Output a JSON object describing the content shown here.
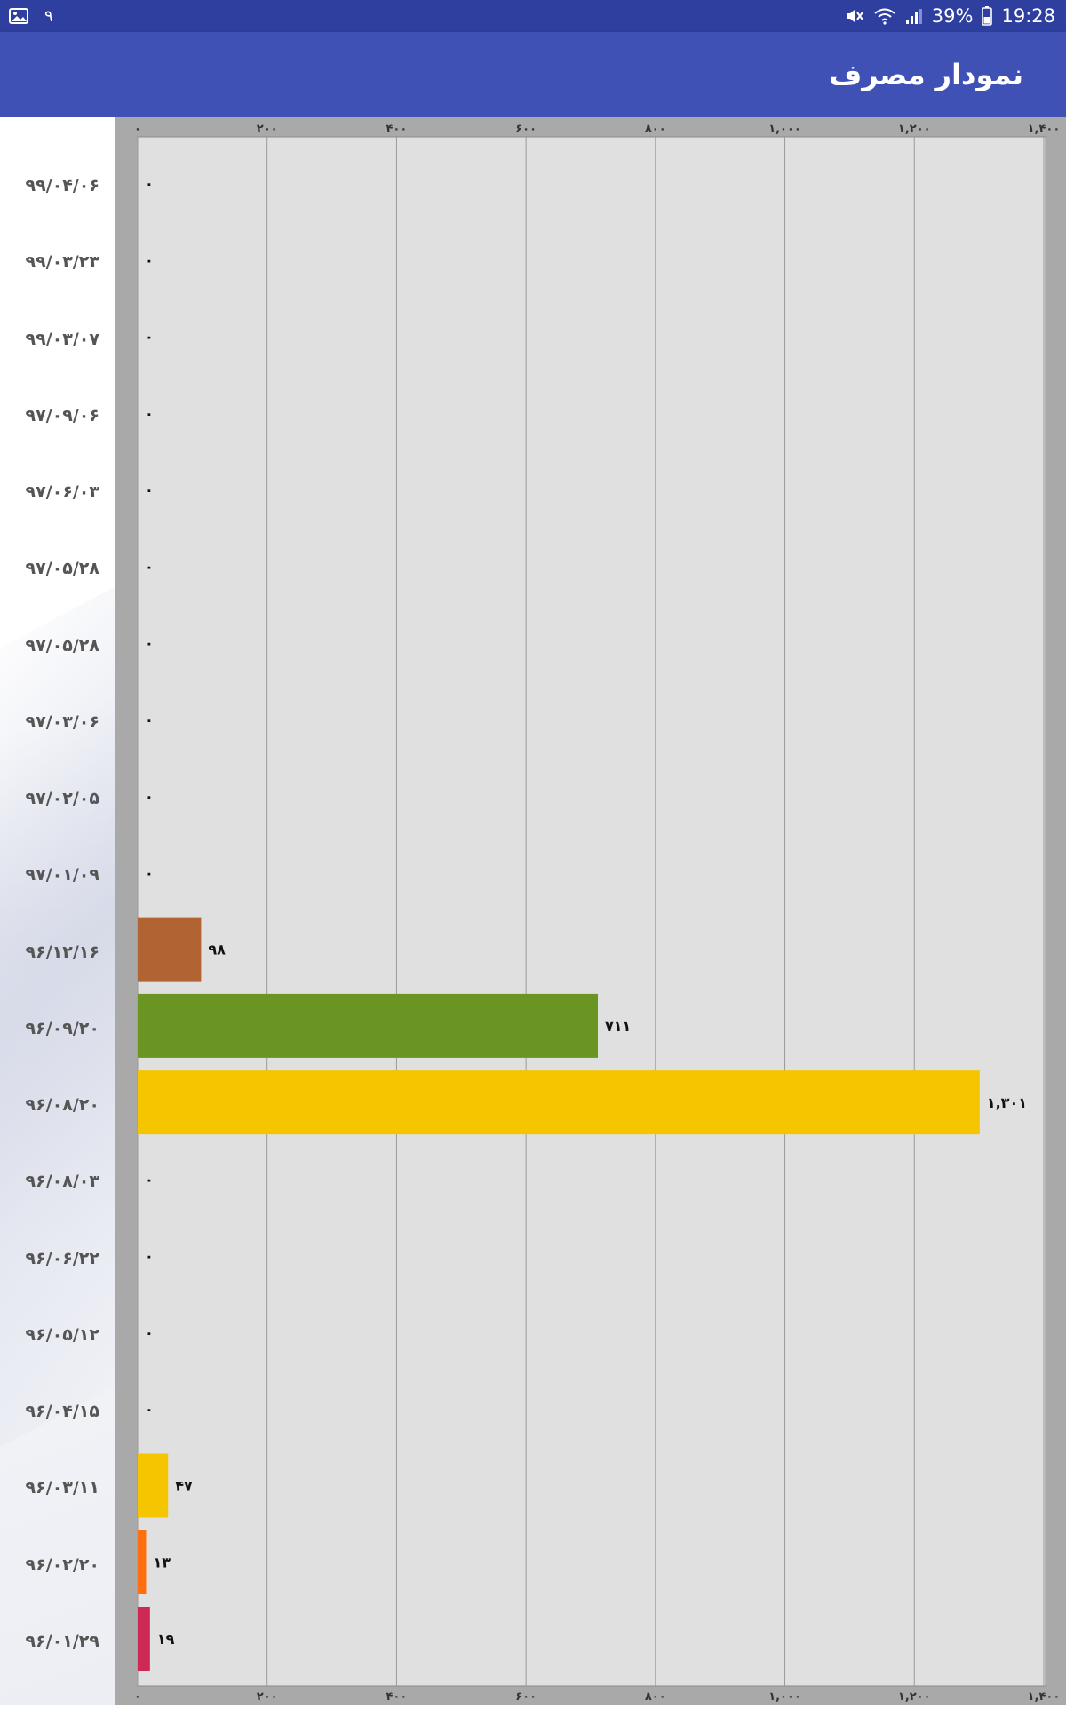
{
  "status_bar": {
    "left_notification": "۹",
    "battery": "39%",
    "time": "19:28",
    "icons": [
      "image-icon",
      "mute-icon",
      "wifi-icon",
      "signal-icon",
      "battery-icon"
    ]
  },
  "app_bar": {
    "title": "نمودار مصرف"
  },
  "colors": {
    "status_bar": "#2e3f9f",
    "app_bar": "#3f51b5",
    "plot_background": "#e0e0e0",
    "chart_frame": "#a9a9a9"
  },
  "chart_data": {
    "type": "bar",
    "orientation": "horizontal",
    "categories": [
      "۹۹/۰۴/۰۶",
      "۹۹/۰۳/۲۳",
      "۹۹/۰۳/۰۷",
      "۹۷/۰۹/۰۶",
      "۹۷/۰۶/۰۳",
      "۹۷/۰۵/۲۸",
      "۹۷/۰۵/۲۸",
      "۹۷/۰۳/۰۶",
      "۹۷/۰۲/۰۵",
      "۹۷/۰۱/۰۹",
      "۹۶/۱۲/۱۶",
      "۹۶/۰۹/۲۰",
      "۹۶/۰۸/۲۰",
      "۹۶/۰۸/۰۳",
      "۹۶/۰۶/۲۲",
      "۹۶/۰۵/۱۲",
      "۹۶/۰۴/۱۵",
      "۹۶/۰۳/۱۱",
      "۹۶/۰۲/۲۰",
      "۹۶/۰۱/۲۹"
    ],
    "values": [
      0,
      0,
      0,
      0,
      0,
      0,
      0,
      0,
      0,
      0,
      98,
      711,
      1301,
      0,
      0,
      0,
      0,
      47,
      13,
      19
    ],
    "value_labels": [
      "۰",
      "۰",
      "۰",
      "۰",
      "۰",
      "۰",
      "۰",
      "۰",
      "۰",
      "۰",
      "۹۸",
      "۷۱۱",
      "۱,۳۰۱",
      "۰",
      "۰",
      "۰",
      "۰",
      "۴۷",
      "۱۳",
      "۱۹"
    ],
    "bar_colors": [
      null,
      null,
      null,
      null,
      null,
      null,
      null,
      null,
      null,
      null,
      "#b26334",
      "#6b9522",
      "#f5c500",
      null,
      null,
      null,
      null,
      "#f5c500",
      "#ff6f10",
      "#cc2a55"
    ],
    "x_ticks": [
      0,
      200,
      400,
      600,
      800,
      1000,
      1200,
      1400
    ],
    "x_tick_labels": [
      "۰",
      "۲۰۰",
      "۴۰۰",
      "۶۰۰",
      "۸۰۰",
      "۱,۰۰۰",
      "۱,۲۰۰",
      "۱,۴۰۰"
    ],
    "xlim": [
      0,
      1400
    ],
    "grid": true,
    "axis_labels_top_and_bottom": true,
    "title": "",
    "xlabel": "",
    "ylabel": ""
  }
}
